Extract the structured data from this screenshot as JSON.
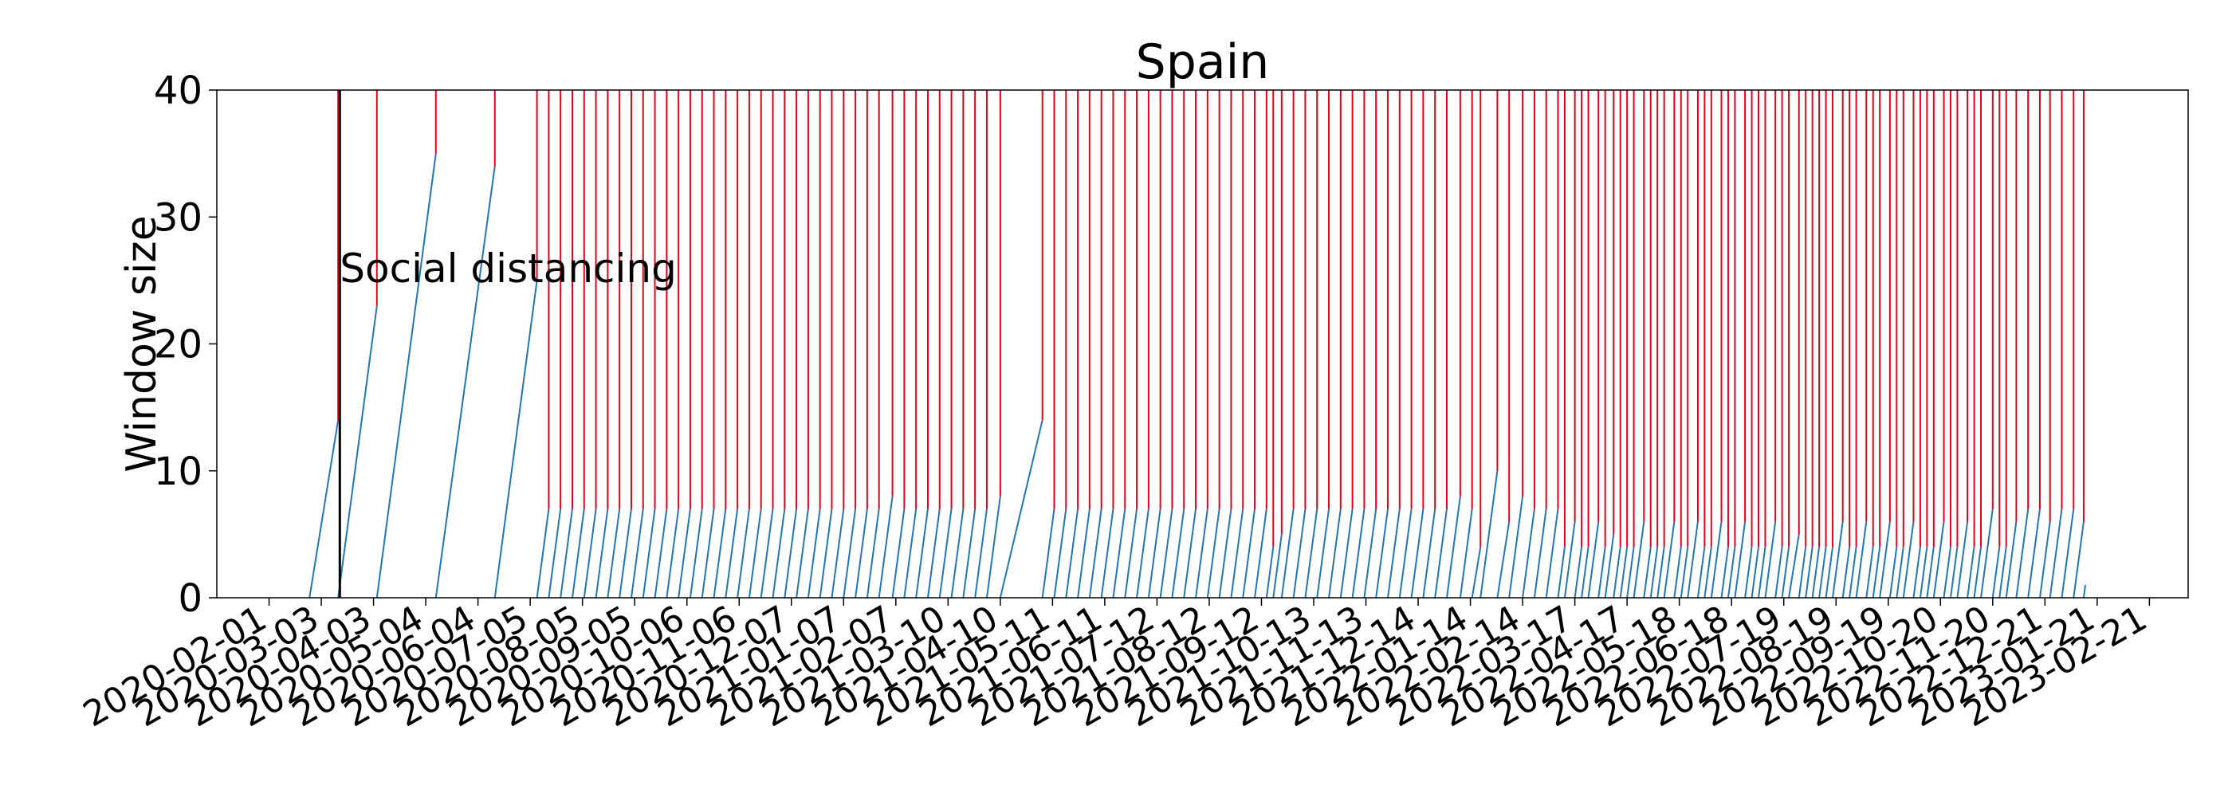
{
  "chart_data": {
    "type": "line",
    "title": "Spain",
    "xlabel": "",
    "ylabel": "Window size",
    "ylim": [
      0,
      40
    ],
    "yticks": [
      0,
      10,
      20,
      30,
      40
    ],
    "xlim": [
      "2020-01-01",
      "2023-03-16"
    ],
    "grid": false,
    "xticks": [
      "2020-02-01",
      "2020-03-03",
      "2020-04-03",
      "2020-05-04",
      "2020-06-04",
      "2020-07-05",
      "2020-08-05",
      "2020-09-05",
      "2020-10-06",
      "2020-11-06",
      "2020-12-07",
      "2021-01-07",
      "2021-02-07",
      "2021-03-10",
      "2021-04-10",
      "2021-05-11",
      "2021-06-11",
      "2021-07-12",
      "2021-08-12",
      "2021-09-12",
      "2021-10-13",
      "2021-11-13",
      "2021-12-14",
      "2022-01-14",
      "2022-02-14",
      "2022-03-17",
      "2022-04-17",
      "2022-05-18",
      "2022-06-18",
      "2022-07-19",
      "2022-08-19",
      "2022-09-19",
      "2022-10-20",
      "2022-11-20",
      "2022-12-21",
      "2023-01-21",
      "2023-02-21"
    ],
    "annotations": [
      {
        "text": "Social distancing",
        "x": "2020-03-14",
        "y": 26
      }
    ],
    "event_line": {
      "date": "2020-03-14",
      "color": "#000000"
    },
    "change_points_color": "#e8001a",
    "series_color": "#1f77b4",
    "series": [
      {
        "segments": [
          {
            "start": "2020-02-25",
            "end": "2020-03-13",
            "peak": 14
          },
          {
            "start": "2020-03-13",
            "end": "2020-04-05",
            "peak": 23
          },
          {
            "start": "2020-04-05",
            "end": "2020-05-10",
            "peak": 35
          },
          {
            "start": "2020-05-10",
            "end": "2020-06-14",
            "peak": 34
          },
          {
            "start": "2020-06-14",
            "end": "2020-07-09",
            "peak": 25
          },
          {
            "start": "2020-07-09",
            "end": "2020-07-16",
            "peak": 7
          },
          {
            "start": "2020-07-16",
            "end": "2020-07-23",
            "peak": 7
          },
          {
            "start": "2020-07-23",
            "end": "2020-07-30",
            "peak": 7
          },
          {
            "start": "2020-07-30",
            "end": "2020-08-06",
            "peak": 7
          },
          {
            "start": "2020-08-06",
            "end": "2020-08-13",
            "peak": 7
          },
          {
            "start": "2020-08-13",
            "end": "2020-08-20",
            "peak": 7
          },
          {
            "start": "2020-08-20",
            "end": "2020-08-27",
            "peak": 7
          },
          {
            "start": "2020-08-27",
            "end": "2020-09-03",
            "peak": 7
          },
          {
            "start": "2020-09-03",
            "end": "2020-09-10",
            "peak": 7
          },
          {
            "start": "2020-09-10",
            "end": "2020-09-17",
            "peak": 7
          },
          {
            "start": "2020-09-17",
            "end": "2020-09-24",
            "peak": 7
          },
          {
            "start": "2020-09-24",
            "end": "2020-10-01",
            "peak": 7
          },
          {
            "start": "2020-10-01",
            "end": "2020-10-08",
            "peak": 7
          },
          {
            "start": "2020-10-08",
            "end": "2020-10-15",
            "peak": 7
          },
          {
            "start": "2020-10-15",
            "end": "2020-10-22",
            "peak": 7
          },
          {
            "start": "2020-10-22",
            "end": "2020-10-29",
            "peak": 7
          },
          {
            "start": "2020-10-29",
            "end": "2020-11-05",
            "peak": 7
          },
          {
            "start": "2020-11-05",
            "end": "2020-11-12",
            "peak": 7
          },
          {
            "start": "2020-11-12",
            "end": "2020-11-19",
            "peak": 7
          },
          {
            "start": "2020-11-19",
            "end": "2020-11-26",
            "peak": 7
          },
          {
            "start": "2020-11-26",
            "end": "2020-12-03",
            "peak": 7
          },
          {
            "start": "2020-12-03",
            "end": "2020-12-10",
            "peak": 7
          },
          {
            "start": "2020-12-10",
            "end": "2020-12-17",
            "peak": 7
          },
          {
            "start": "2020-12-17",
            "end": "2020-12-24",
            "peak": 7
          },
          {
            "start": "2020-12-24",
            "end": "2020-12-31",
            "peak": 7
          },
          {
            "start": "2020-12-31",
            "end": "2021-01-07",
            "peak": 7
          },
          {
            "start": "2021-01-07",
            "end": "2021-01-14",
            "peak": 7
          },
          {
            "start": "2021-01-14",
            "end": "2021-01-21",
            "peak": 7
          },
          {
            "start": "2021-01-21",
            "end": "2021-01-28",
            "peak": 7
          },
          {
            "start": "2021-01-28",
            "end": "2021-02-05",
            "peak": 8
          },
          {
            "start": "2021-02-05",
            "end": "2021-02-12",
            "peak": 7
          },
          {
            "start": "2021-02-12",
            "end": "2021-02-19",
            "peak": 7
          },
          {
            "start": "2021-02-19",
            "end": "2021-02-26",
            "peak": 7
          },
          {
            "start": "2021-02-26",
            "end": "2021-03-05",
            "peak": 7
          },
          {
            "start": "2021-03-05",
            "end": "2021-03-12",
            "peak": 7
          },
          {
            "start": "2021-03-12",
            "end": "2021-03-19",
            "peak": 7
          },
          {
            "start": "2021-03-19",
            "end": "2021-03-26",
            "peak": 7
          },
          {
            "start": "2021-03-26",
            "end": "2021-04-02",
            "peak": 7
          },
          {
            "start": "2021-04-02",
            "end": "2021-04-10",
            "peak": 8
          },
          {
            "start": "2021-04-10",
            "end": "2021-05-05",
            "peak": 14
          },
          {
            "start": "2021-05-05",
            "end": "2021-05-12",
            "peak": 7
          },
          {
            "start": "2021-05-12",
            "end": "2021-05-19",
            "peak": 7
          },
          {
            "start": "2021-05-19",
            "end": "2021-05-26",
            "peak": 7
          },
          {
            "start": "2021-05-26",
            "end": "2021-06-02",
            "peak": 7
          },
          {
            "start": "2021-06-02",
            "end": "2021-06-09",
            "peak": 7
          },
          {
            "start": "2021-06-09",
            "end": "2021-06-16",
            "peak": 7
          },
          {
            "start": "2021-06-16",
            "end": "2021-06-23",
            "peak": 7
          },
          {
            "start": "2021-06-23",
            "end": "2021-06-30",
            "peak": 7
          },
          {
            "start": "2021-06-30",
            "end": "2021-07-07",
            "peak": 7
          },
          {
            "start": "2021-07-07",
            "end": "2021-07-14",
            "peak": 7
          },
          {
            "start": "2021-07-14",
            "end": "2021-07-21",
            "peak": 7
          },
          {
            "start": "2021-07-21",
            "end": "2021-07-28",
            "peak": 7
          },
          {
            "start": "2021-07-28",
            "end": "2021-08-04",
            "peak": 7
          },
          {
            "start": "2021-08-04",
            "end": "2021-08-11",
            "peak": 7
          },
          {
            "start": "2021-08-11",
            "end": "2021-08-18",
            "peak": 7
          },
          {
            "start": "2021-08-18",
            "end": "2021-08-25",
            "peak": 7
          },
          {
            "start": "2021-08-25",
            "end": "2021-09-01",
            "peak": 7
          },
          {
            "start": "2021-09-01",
            "end": "2021-09-08",
            "peak": 7
          },
          {
            "start": "2021-09-08",
            "end": "2021-09-15",
            "peak": 7
          },
          {
            "start": "2021-09-15",
            "end": "2021-09-19",
            "peak": 4
          },
          {
            "start": "2021-09-19",
            "end": "2021-09-24",
            "peak": 5
          },
          {
            "start": "2021-09-24",
            "end": "2021-10-01",
            "peak": 7
          },
          {
            "start": "2021-10-01",
            "end": "2021-10-08",
            "peak": 7
          },
          {
            "start": "2021-10-08",
            "end": "2021-10-15",
            "peak": 7
          },
          {
            "start": "2021-10-15",
            "end": "2021-10-22",
            "peak": 7
          },
          {
            "start": "2021-10-22",
            "end": "2021-10-29",
            "peak": 7
          },
          {
            "start": "2021-10-29",
            "end": "2021-11-05",
            "peak": 7
          },
          {
            "start": "2021-11-05",
            "end": "2021-11-12",
            "peak": 7
          },
          {
            "start": "2021-11-12",
            "end": "2021-11-19",
            "peak": 7
          },
          {
            "start": "2021-11-19",
            "end": "2021-11-26",
            "peak": 7
          },
          {
            "start": "2021-11-26",
            "end": "2021-12-03",
            "peak": 7
          },
          {
            "start": "2021-12-03",
            "end": "2021-12-10",
            "peak": 7
          },
          {
            "start": "2021-12-10",
            "end": "2021-12-17",
            "peak": 7
          },
          {
            "start": "2021-12-17",
            "end": "2021-12-24",
            "peak": 7
          },
          {
            "start": "2021-12-24",
            "end": "2021-12-31",
            "peak": 7
          },
          {
            "start": "2021-12-31",
            "end": "2022-01-08",
            "peak": 8
          },
          {
            "start": "2022-01-08",
            "end": "2022-01-15",
            "peak": 7
          },
          {
            "start": "2022-01-15",
            "end": "2022-01-20",
            "peak": 4
          },
          {
            "start": "2022-01-20",
            "end": "2022-01-30",
            "peak": 10
          },
          {
            "start": "2022-01-30",
            "end": "2022-02-06",
            "peak": 6
          },
          {
            "start": "2022-02-06",
            "end": "2022-02-14",
            "peak": 8
          },
          {
            "start": "2022-02-14",
            "end": "2022-02-21",
            "peak": 7
          },
          {
            "start": "2022-02-21",
            "end": "2022-02-28",
            "peak": 7
          },
          {
            "start": "2022-02-28",
            "end": "2022-03-07",
            "peak": 7
          },
          {
            "start": "2022-03-07",
            "end": "2022-03-11",
            "peak": 4
          },
          {
            "start": "2022-03-11",
            "end": "2022-03-17",
            "peak": 6
          },
          {
            "start": "2022-03-17",
            "end": "2022-03-21",
            "peak": 4
          },
          {
            "start": "2022-03-21",
            "end": "2022-03-25",
            "peak": 4
          },
          {
            "start": "2022-03-25",
            "end": "2022-03-31",
            "peak": 6
          },
          {
            "start": "2022-03-31",
            "end": "2022-04-04",
            "peak": 4
          },
          {
            "start": "2022-04-04",
            "end": "2022-04-09",
            "peak": 5
          },
          {
            "start": "2022-04-09",
            "end": "2022-04-13",
            "peak": 4
          },
          {
            "start": "2022-04-13",
            "end": "2022-04-17",
            "peak": 4
          },
          {
            "start": "2022-04-17",
            "end": "2022-04-21",
            "peak": 4
          },
          {
            "start": "2022-04-21",
            "end": "2022-04-27",
            "peak": 6
          },
          {
            "start": "2022-04-27",
            "end": "2022-05-01",
            "peak": 4
          },
          {
            "start": "2022-05-01",
            "end": "2022-05-05",
            "peak": 4
          },
          {
            "start": "2022-05-05",
            "end": "2022-05-09",
            "peak": 4
          },
          {
            "start": "2022-05-09",
            "end": "2022-05-15",
            "peak": 6
          },
          {
            "start": "2022-05-15",
            "end": "2022-05-19",
            "peak": 4
          },
          {
            "start": "2022-05-19",
            "end": "2022-05-23",
            "peak": 4
          },
          {
            "start": "2022-05-23",
            "end": "2022-05-29",
            "peak": 6
          },
          {
            "start": "2022-05-29",
            "end": "2022-06-02",
            "peak": 4
          },
          {
            "start": "2022-06-02",
            "end": "2022-06-06",
            "peak": 4
          },
          {
            "start": "2022-06-06",
            "end": "2022-06-12",
            "peak": 6
          },
          {
            "start": "2022-06-12",
            "end": "2022-06-16",
            "peak": 4
          },
          {
            "start": "2022-06-16",
            "end": "2022-06-20",
            "peak": 4
          },
          {
            "start": "2022-06-20",
            "end": "2022-06-26",
            "peak": 6
          },
          {
            "start": "2022-06-26",
            "end": "2022-06-30",
            "peak": 4
          },
          {
            "start": "2022-06-30",
            "end": "2022-07-04",
            "peak": 4
          },
          {
            "start": "2022-07-04",
            "end": "2022-07-08",
            "peak": 4
          },
          {
            "start": "2022-07-08",
            "end": "2022-07-14",
            "peak": 6
          },
          {
            "start": "2022-07-14",
            "end": "2022-07-18",
            "peak": 4
          },
          {
            "start": "2022-07-18",
            "end": "2022-07-22",
            "peak": 4
          },
          {
            "start": "2022-07-22",
            "end": "2022-07-28",
            "peak": 5
          },
          {
            "start": "2022-07-28",
            "end": "2022-08-01",
            "peak": 4
          },
          {
            "start": "2022-08-01",
            "end": "2022-08-05",
            "peak": 4
          },
          {
            "start": "2022-08-05",
            "end": "2022-08-09",
            "peak": 4
          },
          {
            "start": "2022-08-09",
            "end": "2022-08-13",
            "peak": 4
          },
          {
            "start": "2022-08-13",
            "end": "2022-08-17",
            "peak": 4
          },
          {
            "start": "2022-08-17",
            "end": "2022-08-23",
            "peak": 6
          },
          {
            "start": "2022-08-23",
            "end": "2022-08-27",
            "peak": 4
          },
          {
            "start": "2022-08-27",
            "end": "2022-08-31",
            "peak": 4
          },
          {
            "start": "2022-08-31",
            "end": "2022-09-06",
            "peak": 6
          },
          {
            "start": "2022-09-06",
            "end": "2022-09-10",
            "peak": 4
          },
          {
            "start": "2022-09-10",
            "end": "2022-09-14",
            "peak": 4
          },
          {
            "start": "2022-09-14",
            "end": "2022-09-20",
            "peak": 6
          },
          {
            "start": "2022-09-20",
            "end": "2022-09-24",
            "peak": 4
          },
          {
            "start": "2022-09-24",
            "end": "2022-09-28",
            "peak": 4
          },
          {
            "start": "2022-09-28",
            "end": "2022-10-04",
            "peak": 6
          },
          {
            "start": "2022-10-04",
            "end": "2022-10-08",
            "peak": 4
          },
          {
            "start": "2022-10-08",
            "end": "2022-10-12",
            "peak": 4
          },
          {
            "start": "2022-10-12",
            "end": "2022-10-16",
            "peak": 4
          },
          {
            "start": "2022-10-16",
            "end": "2022-10-22",
            "peak": 6
          },
          {
            "start": "2022-10-22",
            "end": "2022-10-26",
            "peak": 4
          },
          {
            "start": "2022-10-26",
            "end": "2022-10-30",
            "peak": 4
          },
          {
            "start": "2022-10-30",
            "end": "2022-11-05",
            "peak": 6
          },
          {
            "start": "2022-11-05",
            "end": "2022-11-09",
            "peak": 4
          },
          {
            "start": "2022-11-09",
            "end": "2022-11-13",
            "peak": 4
          },
          {
            "start": "2022-11-13",
            "end": "2022-11-20",
            "peak": 7
          },
          {
            "start": "2022-11-20",
            "end": "2022-11-24",
            "peak": 4
          },
          {
            "start": "2022-11-24",
            "end": "2022-11-28",
            "peak": 4
          },
          {
            "start": "2022-11-28",
            "end": "2022-12-04",
            "peak": 6
          },
          {
            "start": "2022-12-04",
            "end": "2022-12-11",
            "peak": 7
          },
          {
            "start": "2022-12-11",
            "end": "2022-12-18",
            "peak": 7
          },
          {
            "start": "2022-12-18",
            "end": "2022-12-24",
            "peak": 6
          },
          {
            "start": "2022-12-24",
            "end": "2022-12-31",
            "peak": 7
          },
          {
            "start": "2022-12-31",
            "end": "2023-01-07",
            "peak": 7
          },
          {
            "start": "2023-01-07",
            "end": "2023-01-13",
            "peak": 6
          },
          {
            "start": "2023-01-13",
            "end": "2023-01-14",
            "peak": 1
          }
        ]
      }
    ]
  }
}
